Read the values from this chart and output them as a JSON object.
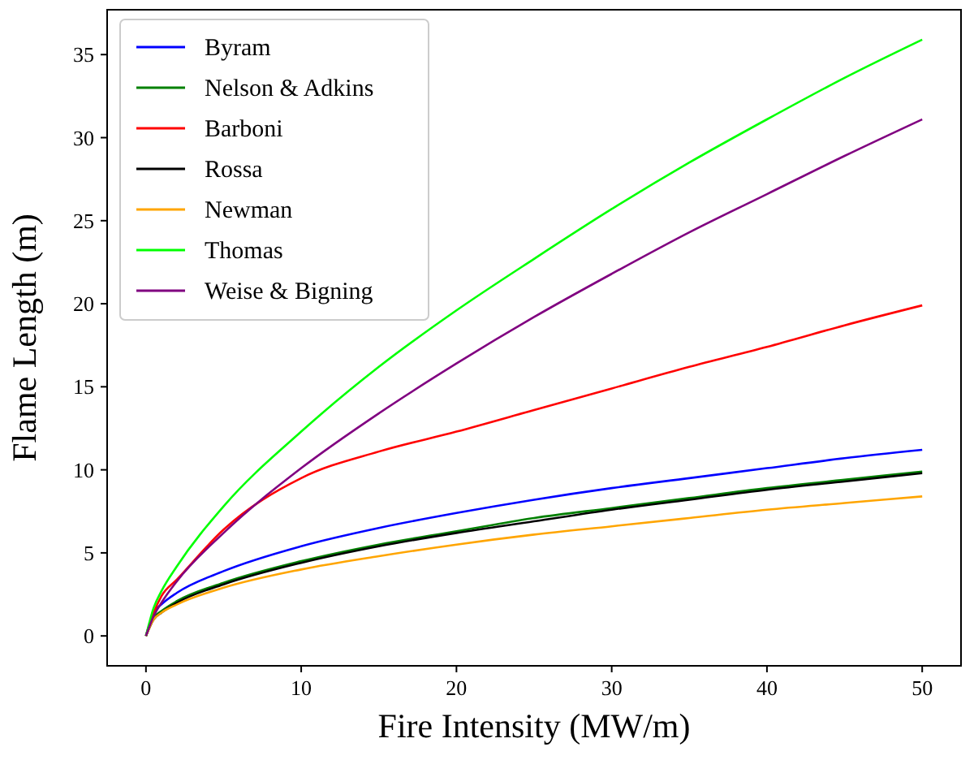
{
  "chart_data": {
    "type": "line",
    "xlabel": "Fire Intensity (MW/m)",
    "ylabel": "Flame Length (m)",
    "x": [
      0,
      0.5,
      1,
      2,
      5,
      10,
      15,
      20,
      25,
      30,
      35,
      40,
      45,
      50
    ],
    "xlim": [
      -2.5,
      52.5
    ],
    "ylim": [
      -1.8,
      37.7
    ],
    "xticks": [
      0,
      10,
      20,
      30,
      40,
      50
    ],
    "yticks": [
      0,
      5,
      10,
      15,
      20,
      25,
      30,
      35
    ],
    "grid": false,
    "legend": "top left",
    "marker": "none",
    "line_style": "solid",
    "series": [
      {
        "name": "Byram",
        "color": "#0000ff",
        "values": [
          0,
          1.4,
          1.9,
          2.6,
          3.9,
          5.4,
          6.5,
          7.4,
          8.2,
          8.9,
          9.5,
          10.1,
          10.7,
          11.2
        ]
      },
      {
        "name": "Nelson & Adkins",
        "color": "#008000",
        "values": [
          0,
          1.1,
          1.5,
          2.1,
          3.2,
          4.5,
          5.5,
          6.3,
          7.1,
          7.7,
          8.3,
          8.9,
          9.4,
          9.9
        ]
      },
      {
        "name": "Barboni",
        "color": "#ff0000",
        "values": [
          0,
          1.4,
          2.4,
          3.4,
          6.4,
          9.5,
          11.1,
          12.3,
          13.6,
          14.9,
          16.2,
          17.4,
          18.7,
          19.9
        ]
      },
      {
        "name": "Rossa",
        "color": "#000000",
        "values": [
          0,
          1.0,
          1.4,
          2.0,
          3.1,
          4.4,
          5.4,
          6.2,
          6.9,
          7.6,
          8.2,
          8.8,
          9.3,
          9.8
        ]
      },
      {
        "name": "Newman",
        "color": "#ffa500",
        "values": [
          0,
          1.0,
          1.4,
          1.9,
          2.9,
          4.0,
          4.8,
          5.5,
          6.1,
          6.6,
          7.1,
          7.6,
          8.0,
          8.4
        ]
      },
      {
        "name": "Thomas",
        "color": "#00ff00",
        "values": [
          0,
          1.7,
          2.7,
          4.2,
          7.8,
          12.3,
          16.2,
          19.6,
          22.7,
          25.7,
          28.5,
          31.1,
          33.6,
          35.9
        ]
      },
      {
        "name": "Weise & Bigning",
        "color": "#800080",
        "values": [
          0,
          1.2,
          2.0,
          3.3,
          6.2,
          10.1,
          13.4,
          16.4,
          19.2,
          21.8,
          24.3,
          26.6,
          28.9,
          31.1
        ]
      }
    ]
  }
}
